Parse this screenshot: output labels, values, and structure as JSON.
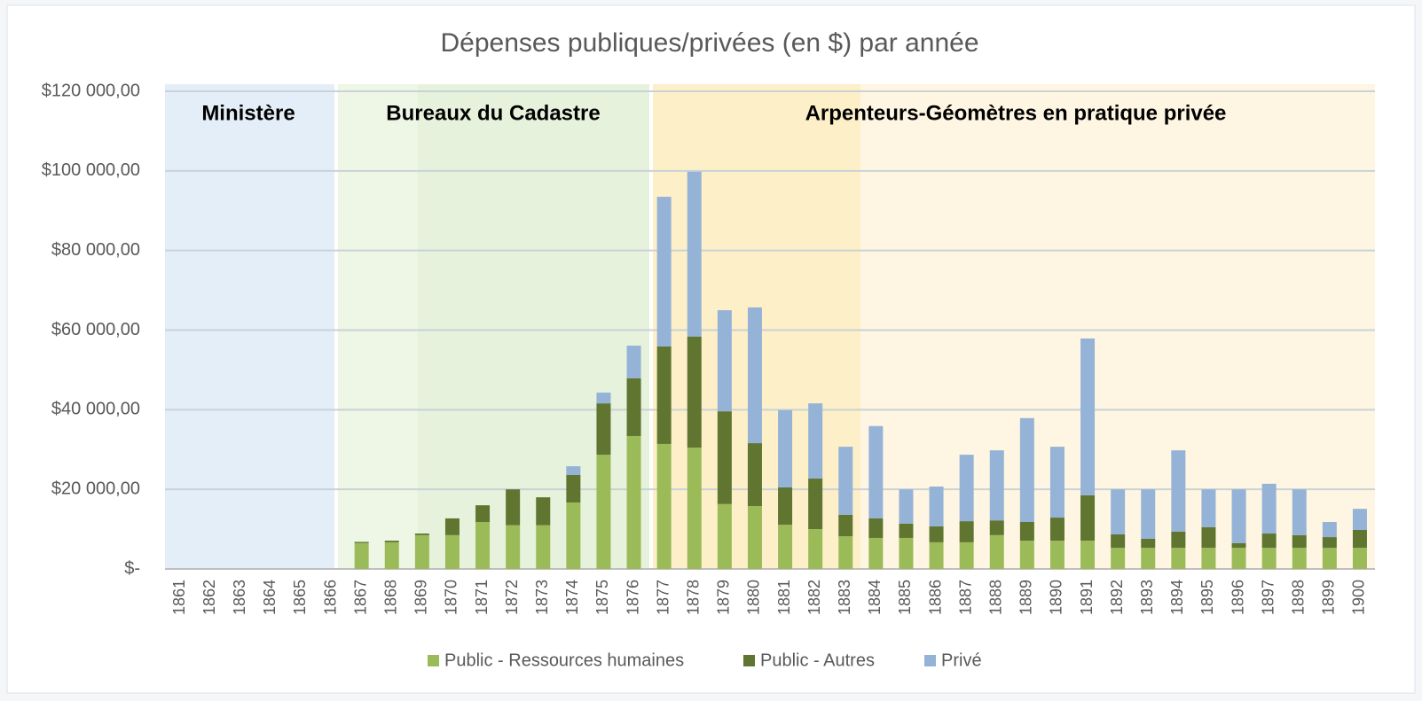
{
  "chart_data": {
    "type": "stacked_bar",
    "title": "Dépenses publiques/privées (en $) par année",
    "annotations": [
      "Ministère",
      "Bureaux du Cadastre",
      "Arpenteurs-Géomètres en pratique privée"
    ],
    "categories": [
      "1861",
      "1862",
      "1863",
      "1864",
      "1865",
      "1866",
      "1867",
      "1868",
      "1869",
      "1870",
      "1871",
      "1872",
      "1873",
      "1874",
      "1875",
      "1876",
      "1877",
      "1878",
      "1879",
      "1880",
      "1881",
      "1882",
      "1883",
      "1884",
      "1885",
      "1886",
      "1887",
      "1888",
      "1889",
      "1890",
      "1891",
      "1892",
      "1893",
      "1894",
      "1895",
      "1896",
      "1897",
      "1898",
      "1899",
      "1900"
    ],
    "series": [
      {
        "name": "Public - Ressources humaines",
        "color": "#9bbb59",
        "values": [
          0,
          0,
          0,
          0,
          0,
          0,
          6500,
          6700,
          8500,
          8500,
          11800,
          11000,
          11000,
          16700,
          28700,
          33400,
          31400,
          30500,
          16300,
          15800,
          11100,
          10000,
          8200,
          7800,
          7800,
          6700,
          6700,
          8500,
          7100,
          7100,
          7100,
          5300,
          5300,
          5300,
          5300,
          5300,
          5300,
          5300,
          5300,
          5300
        ]
      },
      {
        "name": "Public - Autres",
        "color": "#5f7530",
        "values": [
          0,
          0,
          0,
          0,
          0,
          0,
          300,
          400,
          400,
          4200,
          4200,
          9000,
          7000,
          6900,
          12900,
          14500,
          24500,
          27900,
          23300,
          15800,
          9400,
          12700,
          5400,
          4900,
          3600,
          4000,
          5300,
          3700,
          4700,
          5800,
          11400,
          3400,
          2300,
          4100,
          5200,
          1200,
          3600,
          3200,
          2700,
          4500
        ]
      },
      {
        "name": "Privé",
        "color": "#95b3d7",
        "values": [
          0,
          0,
          0,
          0,
          0,
          0,
          0,
          0,
          0,
          0,
          0,
          0,
          0,
          2200,
          2700,
          8200,
          37600,
          41400,
          25400,
          34100,
          19400,
          18900,
          17100,
          23200,
          8600,
          10000,
          16700,
          17600,
          26100,
          17800,
          39400,
          11300,
          12400,
          20400,
          9500,
          13500,
          12500,
          11500,
          3800,
          5300
        ]
      }
    ],
    "ylim": [
      0,
      120000
    ],
    "yticks": [
      {
        "value": 0,
        "label": "$-"
      },
      {
        "value": 20000,
        "label": "$20 000,00"
      },
      {
        "value": 40000,
        "label": "$40 000,00"
      },
      {
        "value": 60000,
        "label": "$60 000,00"
      },
      {
        "value": 80000,
        "label": "$80 000,00"
      },
      {
        "value": 100000,
        "label": "$100 000,00"
      },
      {
        "value": 120000,
        "label": "$120 000,00"
      }
    ],
    "grid": true,
    "legend": "bottom"
  }
}
